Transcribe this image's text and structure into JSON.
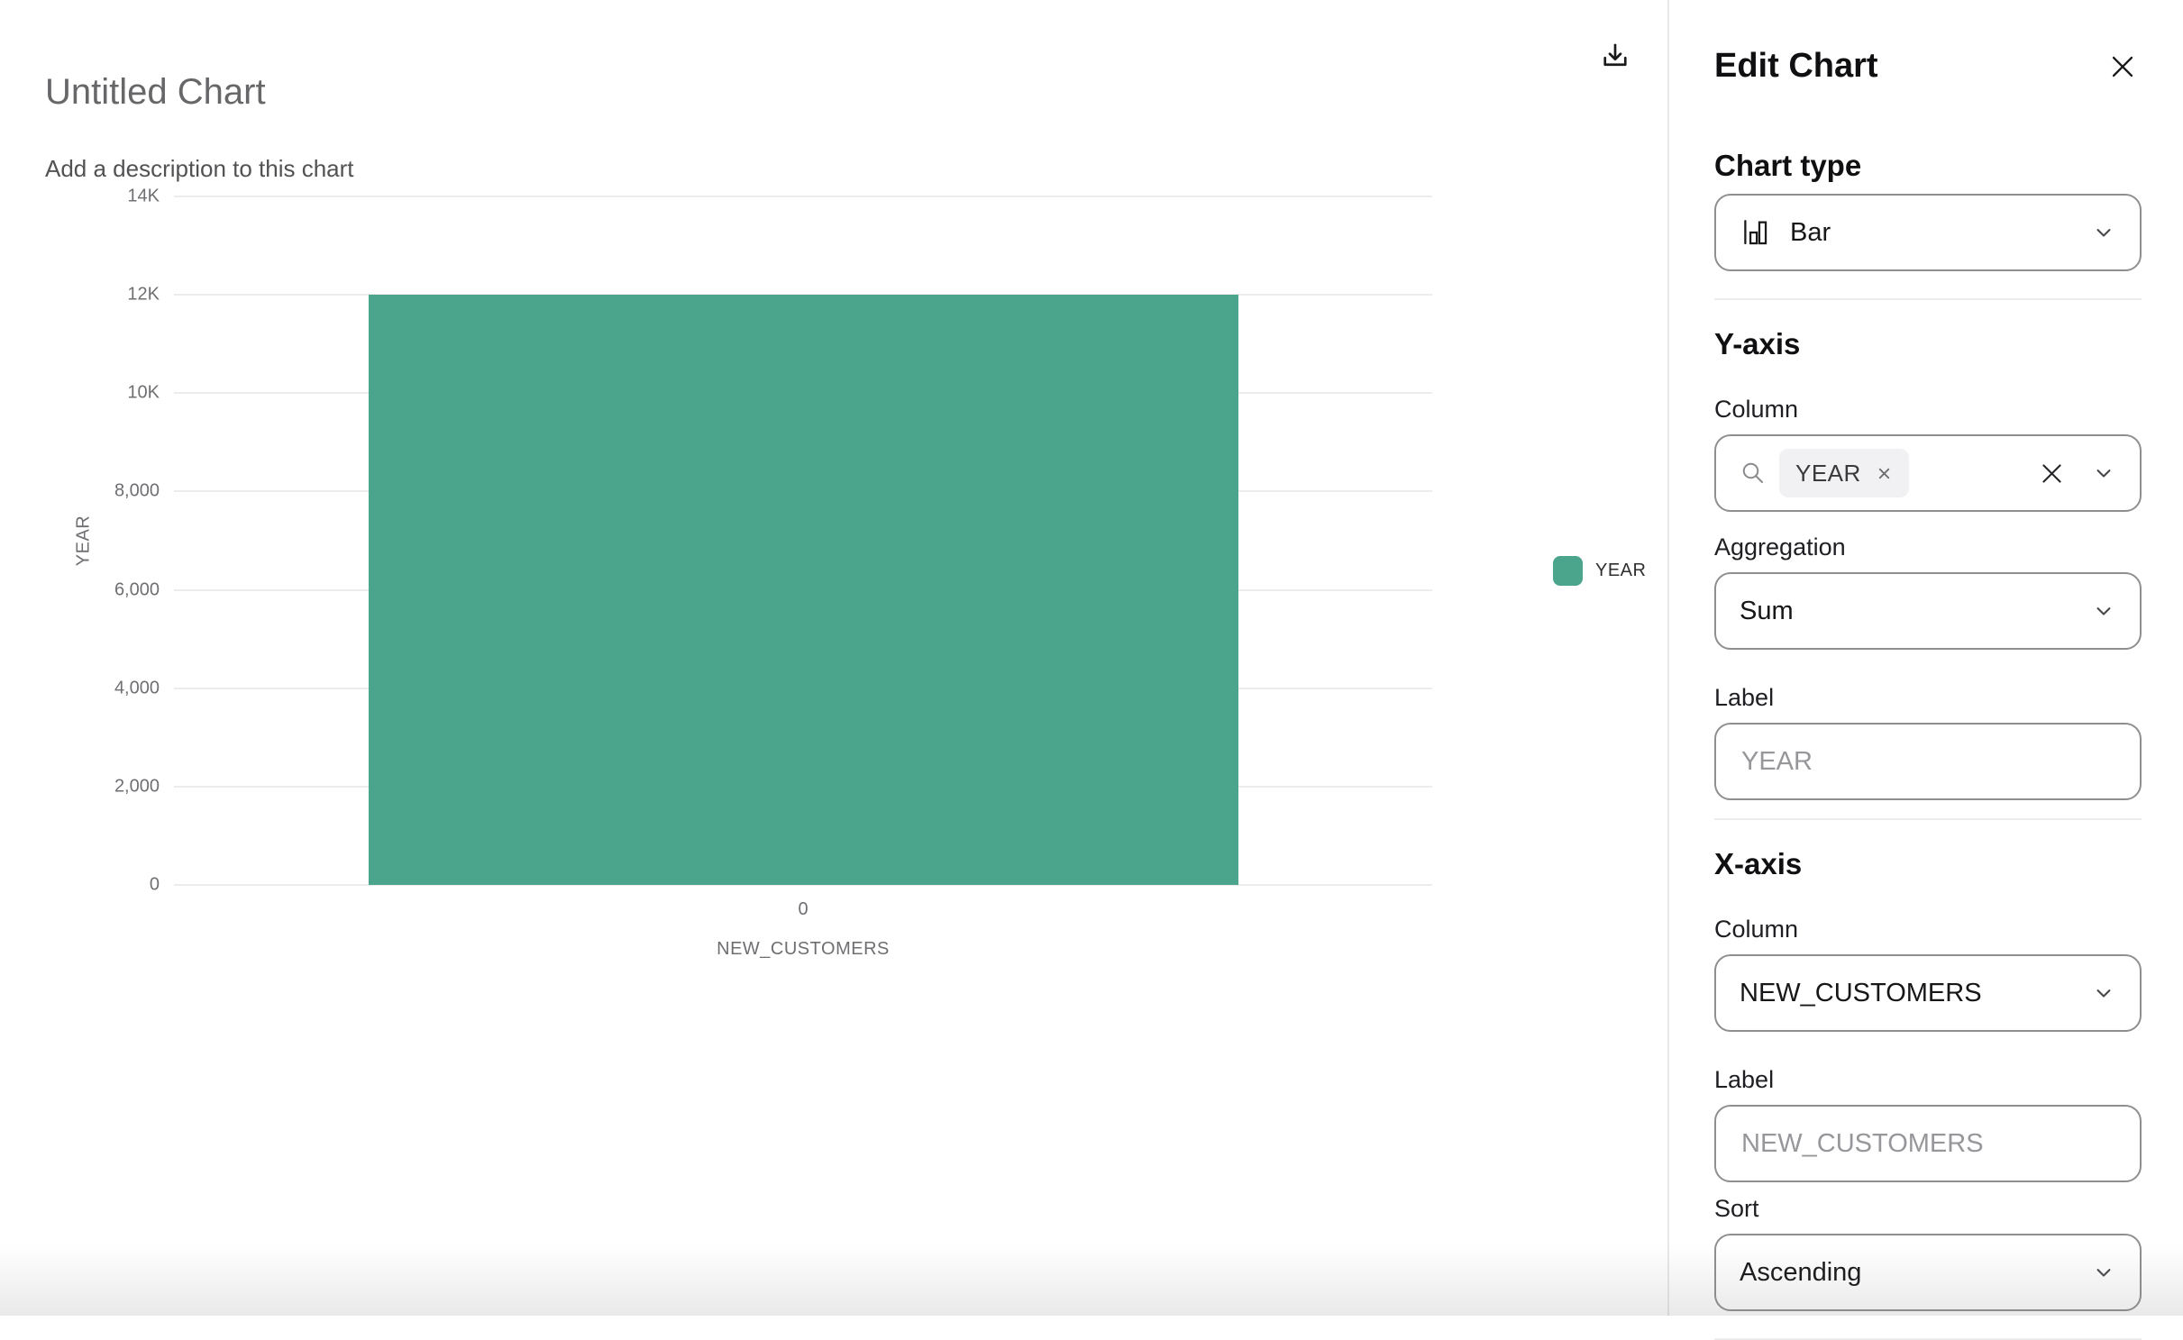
{
  "chart_header": {
    "title": "Untitled Chart",
    "subtitle": "Add a description to this chart"
  },
  "chart_data": {
    "type": "bar",
    "title": "Untitled Chart",
    "categories": [
      "0"
    ],
    "series": [
      {
        "name": "YEAR",
        "values": [
          12000
        ]
      }
    ],
    "xlabel": "NEW_CUSTOMERS",
    "ylabel": "YEAR",
    "ylim": [
      0,
      14000
    ],
    "ytick_labels": [
      "14K",
      "12K",
      "10K",
      "8,000",
      "6,000",
      "4,000",
      "2,000",
      "0"
    ],
    "grid": true,
    "bar_color": "#4aa58c",
    "legend": {
      "position": "right",
      "entries": [
        {
          "label": "YEAR",
          "color": "#4aa58c"
        }
      ]
    }
  },
  "panel": {
    "title": "Edit Chart",
    "chart_type": {
      "heading": "Chart type",
      "value": "Bar"
    },
    "y_axis": {
      "heading": "Y-axis",
      "column_label": "Column",
      "selected_chip": "YEAR",
      "aggregation_label": "Aggregation",
      "aggregation_value": "Sum",
      "label_label": "Label",
      "label_placeholder": "YEAR"
    },
    "x_axis": {
      "heading": "X-axis",
      "column_label": "Column",
      "column_value": "NEW_CUSTOMERS",
      "label_label": "Label",
      "label_placeholder": "NEW_CUSTOMERS",
      "sort_label": "Sort",
      "sort_value": "Ascending"
    }
  },
  "colors": {
    "accent": "#4aa58c",
    "grid": "#ececec",
    "panel_border": "#e8e8e8"
  },
  "icons": {
    "download": "download-icon",
    "close": "close-icon",
    "search": "search-icon",
    "chevron": "chevron-down-icon",
    "clear": "clear-icon",
    "chip_remove": "remove-icon",
    "bar_chart": "bar-chart-icon"
  }
}
